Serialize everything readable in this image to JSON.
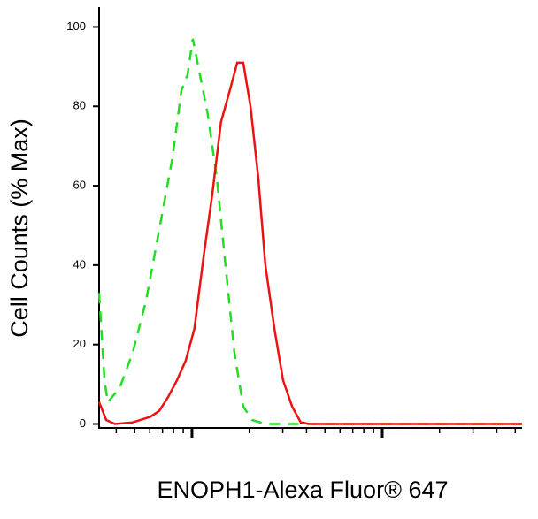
{
  "chart_data": {
    "type": "line",
    "x_label": "ENOPH1-Alexa Fluor® 647",
    "y_label": "Cell Counts (% Max)",
    "xscale": "log",
    "xlim": [
      3.25,
      543
    ],
    "xticks": [
      10,
      100
    ],
    "xminorticks": [
      4,
      5,
      6,
      7,
      8,
      9,
      20,
      30,
      40,
      50,
      60,
      70,
      80,
      90,
      200,
      300,
      400,
      500
    ],
    "ylim": [
      -1,
      105
    ],
    "yticks": [
      0,
      20,
      40,
      60,
      80,
      100
    ],
    "series": [
      {
        "color": "#22dd22",
        "dash": true,
        "x": [
          3.25,
          3.47,
          3.61,
          4.16,
          4.88,
          5.73,
          6.73,
          7.9,
          8.8,
          9.48,
          10.1,
          10.9,
          12.1,
          13.5,
          15.0,
          16.7,
          18.6,
          20.7,
          24.3,
          543
        ],
        "values": [
          33,
          11,
          5.5,
          9,
          18,
          31,
          49,
          67,
          84,
          88,
          97,
          89,
          78,
          62,
          40,
          18,
          4.4,
          1,
          0,
          0
        ]
      },
      {
        "color": "#ee1111",
        "dash": false,
        "x": [
          3.25,
          3.54,
          3.94,
          4.88,
          6.04,
          6.73,
          7.48,
          8.34,
          9.27,
          10.3,
          11.5,
          12.8,
          14.2,
          15.8,
          17.3,
          18.6,
          20.3,
          22.3,
          24.3,
          27.1,
          30.1,
          33.6,
          37.3,
          41.6,
          543
        ],
        "values": [
          5.5,
          1,
          0,
          0.4,
          1.8,
          3.3,
          6.7,
          11,
          16,
          24,
          42,
          58,
          76,
          84,
          91,
          91,
          80,
          62,
          40,
          24,
          11,
          4.4,
          0.4,
          0,
          0
        ]
      }
    ]
  }
}
